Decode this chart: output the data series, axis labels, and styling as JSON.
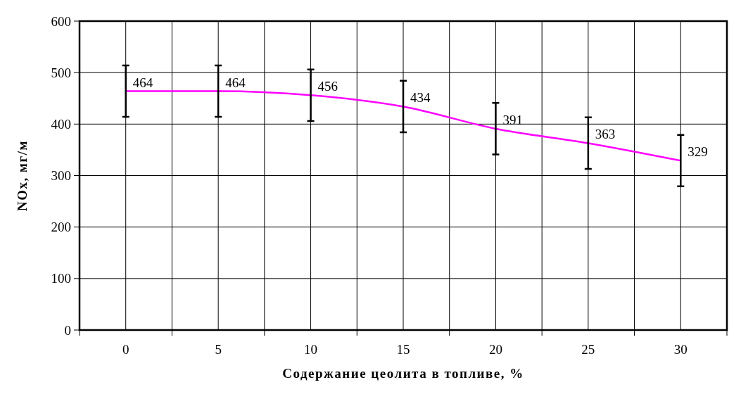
{
  "chart_data": {
    "type": "line",
    "xlabel": "Содержание цеолита в топливе, %",
    "ylabel": "NOx, мг/м",
    "x": [
      0,
      5,
      10,
      15,
      20,
      25,
      30
    ],
    "series": [
      {
        "color": "#ff00ff",
        "values": [
          464,
          464,
          456,
          434,
          391,
          363,
          329
        ],
        "errors": [
          50,
          50,
          50,
          50,
          50,
          50,
          50
        ]
      }
    ],
    "xlim": [
      -2.5,
      32.5
    ],
    "xticks": [
      {
        "value": -2.5,
        "label": null
      },
      0,
      {
        "value": 2.5,
        "label": null
      },
      5,
      {
        "value": 7.5,
        "label": null
      },
      10,
      {
        "value": 12.5,
        "label": null
      },
      15,
      {
        "value": 17.5,
        "label": null
      },
      20,
      {
        "value": 22.5,
        "label": null
      },
      25,
      {
        "value": 27.5,
        "label": null
      },
      30,
      {
        "value": 32.5,
        "label": null
      }
    ],
    "ylim": [
      0,
      600
    ],
    "yticks": [
      0,
      100,
      200,
      300,
      400,
      500,
      600
    ],
    "grid": true,
    "data_labels": true,
    "marker": "none",
    "line_style": "solid"
  }
}
